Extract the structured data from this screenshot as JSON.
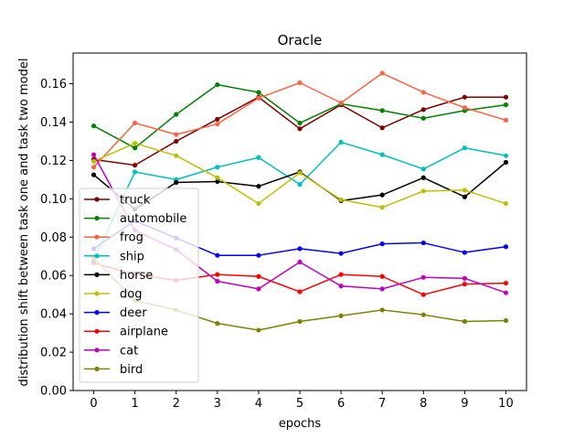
{
  "chart_data": {
    "type": "line",
    "title": "Oracle",
    "xlabel": "epochs",
    "ylabel": "distribution shift between task one and task two model",
    "x": [
      0,
      1,
      2,
      3,
      4,
      5,
      6,
      7,
      8,
      9,
      10
    ],
    "xlim": [
      -0.5,
      10.5
    ],
    "ylim": [
      0.0,
      0.176
    ],
    "yticks": [
      "0.00",
      "0.02",
      "0.04",
      "0.06",
      "0.08",
      "0.10",
      "0.12",
      "0.14",
      "0.16"
    ],
    "xticks": [
      "0",
      "1",
      "2",
      "3",
      "4",
      "5",
      "6",
      "7",
      "8",
      "9",
      "10"
    ],
    "legend_position": "lower-left",
    "grid": false,
    "series": [
      {
        "name": "truck",
        "color": "#800000",
        "values": [
          0.1205,
          0.1175,
          0.13,
          0.1415,
          0.153,
          0.1365,
          0.149,
          0.137,
          0.1465,
          0.153,
          0.153
        ]
      },
      {
        "name": "automobile",
        "color": "#008000",
        "values": [
          0.138,
          0.1265,
          0.144,
          0.1595,
          0.1555,
          0.1395,
          0.1495,
          0.146,
          0.142,
          0.146,
          0.149
        ]
      },
      {
        "name": "frog",
        "color": "#ff6347",
        "values": [
          0.1165,
          0.1395,
          0.1335,
          0.139,
          0.1525,
          0.1605,
          0.15,
          0.1655,
          0.1555,
          0.1475,
          0.141
        ]
      },
      {
        "name": "ship",
        "color": "#00bfbf",
        "values": [
          0.068,
          0.114,
          0.11,
          0.1165,
          0.1215,
          0.1075,
          0.1295,
          0.123,
          0.1155,
          0.1265,
          0.1225
        ]
      },
      {
        "name": "horse",
        "color": "#000000",
        "values": [
          0.1125,
          0.0945,
          0.1085,
          0.109,
          0.1065,
          0.114,
          0.099,
          0.102,
          0.111,
          0.101,
          0.119
        ]
      },
      {
        "name": "dog",
        "color": "#bfbf00",
        "values": [
          0.1195,
          0.129,
          0.1225,
          0.111,
          0.0975,
          0.1135,
          0.0995,
          0.0955,
          0.104,
          0.1045,
          0.0975
        ]
      },
      {
        "name": "deer",
        "color": "#0000ff",
        "values": [
          0.074,
          0.0885,
          0.0795,
          0.0705,
          0.0705,
          0.074,
          0.0715,
          0.0765,
          0.077,
          0.072,
          0.075
        ]
      },
      {
        "name": "airplane",
        "color": "#ff0000",
        "values": [
          0.0665,
          0.0605,
          0.0575,
          0.0605,
          0.0595,
          0.0515,
          0.0605,
          0.0595,
          0.05,
          0.0555,
          0.056
        ]
      },
      {
        "name": "cat",
        "color": "#bf00bf",
        "values": [
          0.123,
          0.0835,
          0.0735,
          0.057,
          0.053,
          0.067,
          0.0545,
          0.053,
          0.059,
          0.0585,
          0.051
        ]
      },
      {
        "name": "bird",
        "color": "#808000",
        "values": [
          0.069,
          0.047,
          0.042,
          0.035,
          0.0315,
          0.036,
          0.039,
          0.042,
          0.0395,
          0.036,
          0.0365
        ]
      }
    ]
  }
}
